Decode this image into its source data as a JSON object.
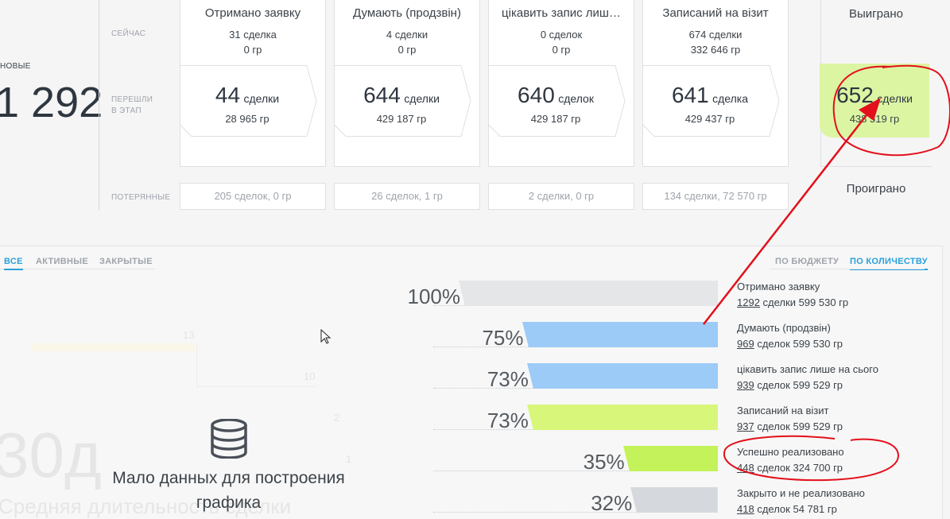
{
  "new_block": {
    "label": "НОВЫЕ",
    "count": "1 292"
  },
  "row_labels": {
    "now": "СЕЙЧАС",
    "passed_1": "ПЕРЕШЛИ",
    "passed_2": "В ЭТАП",
    "lost": "ПОТЕРЯННЫЕ"
  },
  "stages": [
    {
      "title": "Отримано заявку",
      "now_deals": "31 сделка",
      "now_sum": "0 гр",
      "passed_count": "44",
      "passed_unit": "сделки",
      "passed_sum": "28 965 гр",
      "lost": "205 сделок, 0 гр"
    },
    {
      "title": "Думають (продзвін)",
      "now_deals": "4 сделки",
      "now_sum": "0 гр",
      "passed_count": "644",
      "passed_unit": "сделки",
      "passed_sum": "429 187 гр",
      "lost": "26 сделок, 1 гр"
    },
    {
      "title": "цікавить запис лиш…",
      "now_deals": "0 сделок",
      "now_sum": "0 гр",
      "passed_count": "640",
      "passed_unit": "сделок",
      "passed_sum": "429 187 гр",
      "lost": "2 сделки, 0 гр"
    },
    {
      "title": "Записаний на візит",
      "now_deals": "674 сделки",
      "now_sum": "332 646 гр",
      "passed_count": "641",
      "passed_unit": "сделка",
      "passed_sum": "429 437 гр",
      "lost": "134 сделки, 72 570 гр"
    }
  ],
  "won": {
    "title": "Выиграно",
    "count": "652",
    "unit": "сделки",
    "sum": "438 519 гр"
  },
  "lost_title": "Проиграно",
  "tabs": {
    "all": "ВСЕ",
    "active": "АКТИВНЫЕ",
    "closed": "ЗАКРЫТЫЕ"
  },
  "mode_tabs": {
    "budget": "ПО БЮДЖЕТУ",
    "quantity": "ПО КОЛИЧЕСТВУ"
  },
  "empty_chart": {
    "message_line1": "Мало данных для построения",
    "message_line2": "графика",
    "icon": "database-icon"
  },
  "faded": {
    "big": "30д",
    "caption": "Средняя длительность сделки",
    "ticks": [
      "13",
      "10",
      "2",
      "1"
    ]
  },
  "funnel": [
    {
      "pct": "100%",
      "value": 100,
      "color": "#e4e6e8",
      "name": "Отримано заявку",
      "count": "1292",
      "rest": " сделки 599 530 гр"
    },
    {
      "pct": "75%",
      "value": 75,
      "color": "#9ccbf7",
      "name": "Думають (продзвін)",
      "count": "969",
      "rest": " сделок 599 530 гр"
    },
    {
      "pct": "73%",
      "value": 73,
      "color": "#9ccbf7",
      "name": "цікавить запис лише на сього",
      "count": "939",
      "rest": " сделок 599 529 гр"
    },
    {
      "pct": "73%",
      "value": 73,
      "color": "#d8f77a",
      "name": "Записаний на візит",
      "count": "937",
      "rest": " сделок 599 529 гр"
    },
    {
      "pct": "35%",
      "value": 35,
      "color": "#c4f25a",
      "name": "Успешно реализовано",
      "count": "448",
      "rest": " сделок 324 700 гр"
    },
    {
      "pct": "32%",
      "value": 32,
      "color": "#d5d9dd",
      "name": "Закрыто и не реализовано",
      "count": "418",
      "rest": " сделок 54 781 гр"
    }
  ],
  "colors": {
    "won_bg": "#dcf5a3",
    "accent": "#2aa0dc",
    "annotation": "#e3101b"
  }
}
